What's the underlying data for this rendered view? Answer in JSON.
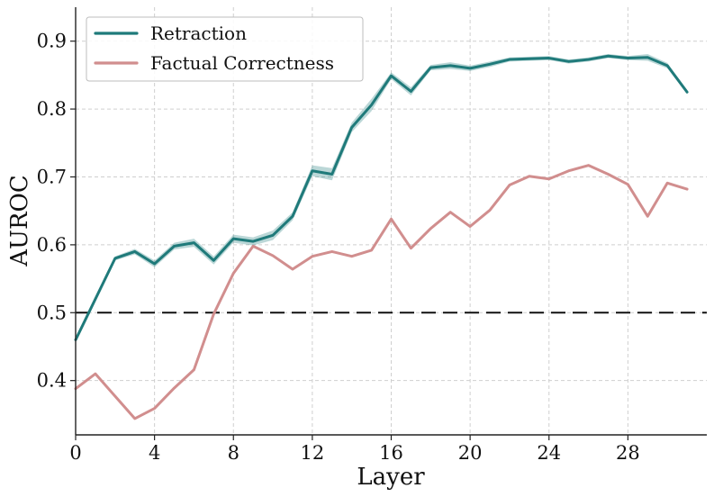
{
  "chart_data": {
    "type": "line",
    "xlabel": "Layer",
    "ylabel": "AUROC",
    "xlim": [
      0,
      32
    ],
    "ylim": [
      0.32,
      0.95
    ],
    "x_ticks": [
      0,
      4,
      8,
      12,
      16,
      20,
      24,
      28
    ],
    "y_ticks": [
      0.4,
      0.5,
      0.6,
      0.7,
      0.8,
      0.9
    ],
    "y_tick_labels": [
      "0.4",
      "0.5",
      "0.6",
      "0.7",
      "0.8",
      "0.9"
    ],
    "grid": true,
    "legend_position": "top-left",
    "reference_line": {
      "y": 0.5,
      "style": "dashed",
      "color": "#111111"
    },
    "series": [
      {
        "name": "Retraction",
        "color": "#1f7a7a",
        "band_color": "#1f7a7a",
        "x": [
          0,
          1,
          2,
          3,
          4,
          5,
          6,
          7,
          8,
          9,
          10,
          11,
          12,
          13,
          14,
          15,
          16,
          17,
          18,
          19,
          20,
          21,
          22,
          23,
          24,
          25,
          26,
          27,
          28,
          29,
          30,
          31
        ],
        "values": [
          0.46,
          0.52,
          0.58,
          0.59,
          0.572,
          0.598,
          0.603,
          0.577,
          0.609,
          0.605,
          0.614,
          0.642,
          0.709,
          0.704,
          0.773,
          0.806,
          0.849,
          0.826,
          0.861,
          0.864,
          0.86,
          0.866,
          0.873,
          0.874,
          0.875,
          0.87,
          0.873,
          0.878,
          0.875,
          0.876,
          0.864,
          0.825
        ],
        "spread": [
          0.003,
          0.003,
          0.003,
          0.004,
          0.005,
          0.005,
          0.006,
          0.006,
          0.006,
          0.006,
          0.007,
          0.006,
          0.008,
          0.009,
          0.007,
          0.009,
          0.005,
          0.006,
          0.004,
          0.005,
          0.004,
          0.004,
          0.003,
          0.003,
          0.003,
          0.003,
          0.003,
          0.003,
          0.003,
          0.005,
          0.004,
          0.003
        ]
      },
      {
        "name": "Factual Correctness",
        "color": "#d18e8e",
        "band_color": "#e8a8a8",
        "x": [
          0,
          1,
          2,
          3,
          4,
          5,
          6,
          7,
          8,
          9,
          10,
          11,
          12,
          13,
          14,
          15,
          16,
          17,
          18,
          19,
          20,
          21,
          22,
          23,
          24,
          25,
          26,
          27,
          28,
          29,
          30,
          31
        ],
        "values": [
          0.388,
          0.41,
          0.377,
          0.344,
          0.359,
          0.389,
          0.416,
          0.498,
          0.558,
          0.598,
          0.584,
          0.564,
          0.583,
          0.59,
          0.583,
          0.592,
          0.638,
          0.595,
          0.624,
          0.648,
          0.627,
          0.651,
          0.688,
          0.701,
          0.697,
          0.709,
          0.717,
          0.704,
          0.689,
          0.642,
          0.691,
          0.682
        ]
      }
    ]
  }
}
